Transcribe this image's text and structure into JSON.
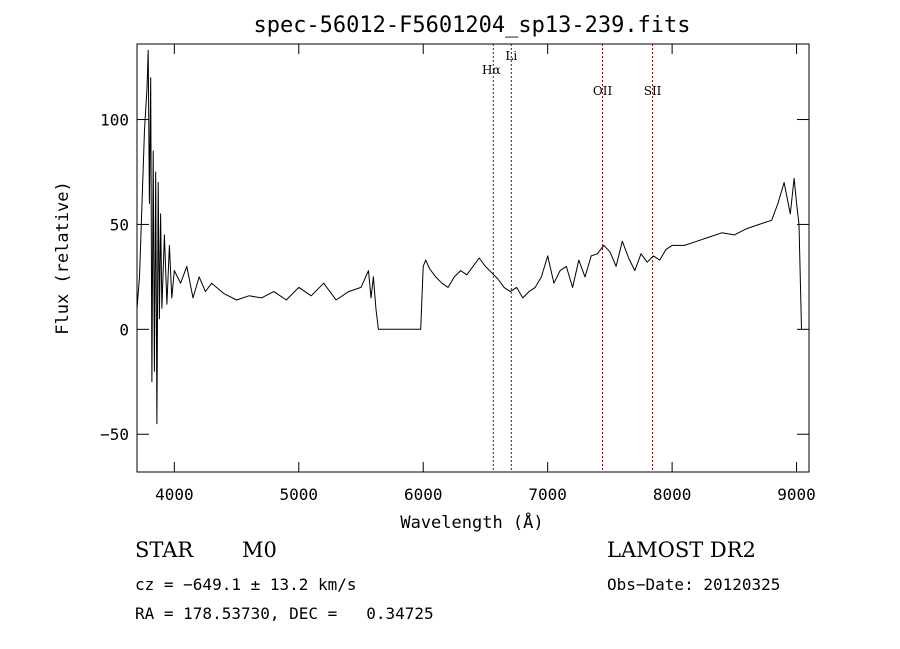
{
  "chart_data": {
    "type": "line",
    "title": "spec-56012-F5601204_sp13-239.fits",
    "xlabel": "Wavelength (Å)",
    "ylabel": "Flux (relative)",
    "xlim": [
      3700,
      9100
    ],
    "ylim": [
      -68,
      136
    ],
    "xticks": [
      4000,
      5000,
      6000,
      7000,
      8000,
      9000
    ],
    "yticks": [
      -50,
      0,
      50,
      100
    ],
    "grid": false,
    "line_color": "#000000",
    "marker_color": "#8b0000",
    "line_markers": [
      {
        "label": "Hα",
        "x": 6563
      },
      {
        "label": "Li",
        "x": 6708
      },
      {
        "label": "OII",
        "x": 7441
      },
      {
        "label": "SII",
        "x": 7843
      }
    ],
    "series": [
      {
        "x": [
          3700,
          3720,
          3740,
          3760,
          3780,
          3790,
          3800,
          3810,
          3820,
          3830,
          3840,
          3850,
          3860,
          3870,
          3880,
          3890,
          3900,
          3920,
          3940,
          3960,
          3980,
          4000,
          4050,
          4100,
          4150,
          4200,
          4250,
          4300,
          4400,
          4500,
          4600,
          4700,
          4800,
          4900,
          5000,
          5100,
          5200,
          5300,
          5400,
          5500,
          5560,
          5580,
          5600,
          5620,
          5640,
          5660,
          5700,
          5800,
          5900,
          5980,
          6000,
          6020,
          6050,
          6100,
          6150,
          6200,
          6250,
          6300,
          6350,
          6400,
          6450,
          6500,
          6550,
          6600,
          6650,
          6700,
          6750,
          6800,
          6850,
          6900,
          6950,
          7000,
          7050,
          7100,
          7150,
          7200,
          7250,
          7300,
          7350,
          7400,
          7450,
          7500,
          7550,
          7600,
          7650,
          7700,
          7750,
          7800,
          7850,
          7900,
          7950,
          8000,
          8100,
          8200,
          8300,
          8400,
          8500,
          8600,
          8700,
          8800,
          8850,
          8900,
          8950,
          8980,
          9000,
          9020,
          9040
        ],
        "y": [
          10,
          25,
          60,
          95,
          115,
          133,
          60,
          120,
          -25,
          85,
          -20,
          75,
          -45,
          70,
          5,
          55,
          10,
          45,
          12,
          40,
          15,
          28,
          22,
          30,
          15,
          25,
          18,
          22,
          17,
          14,
          16,
          15,
          18,
          14,
          20,
          16,
          22,
          14,
          18,
          20,
          28,
          15,
          25,
          10,
          0,
          0,
          0,
          0,
          0,
          0,
          30,
          33,
          29,
          25,
          22,
          20,
          25,
          28,
          26,
          30,
          34,
          30,
          27,
          24,
          20,
          18,
          20,
          15,
          18,
          20,
          25,
          35,
          22,
          28,
          30,
          20,
          33,
          25,
          35,
          36,
          40,
          37,
          30,
          42,
          34,
          28,
          36,
          32,
          35,
          33,
          38,
          40,
          40,
          42,
          44,
          46,
          45,
          48,
          50,
          52,
          60,
          70,
          55,
          72,
          60,
          50,
          0
        ]
      }
    ]
  },
  "info": {
    "object_type": "STAR",
    "subclass": "M0",
    "survey": "LAMOST DR2",
    "redshift_line": "cz = −649.1 ± 13.2 km/s",
    "obs_date_line": "Obs−Date: 20120325",
    "coords_line": "RA = 178.53730, DEC =   0.34725"
  }
}
